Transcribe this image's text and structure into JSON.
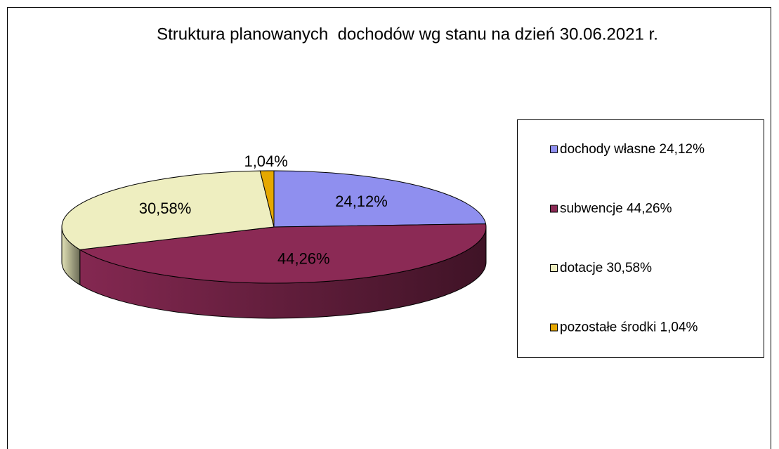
{
  "chart_data": {
    "type": "pie3d",
    "title": "Struktura planowanych  dochodów wg stanu na dzień 30.06.2021 r.",
    "categories": [
      "dochody własne 24,12%",
      "subwencje 44,26%",
      "dotacje 30,58%",
      "pozostałe środki 1,04%"
    ],
    "values": [
      24.12,
      44.26,
      30.58,
      1.04
    ],
    "value_labels": [
      "24,12%",
      "44,26%",
      "30,58%",
      "1,04%"
    ],
    "colors": [
      "#8f8fef",
      "#8b2a55",
      "#eeeec0",
      "#e6a800"
    ],
    "legend": "right"
  }
}
